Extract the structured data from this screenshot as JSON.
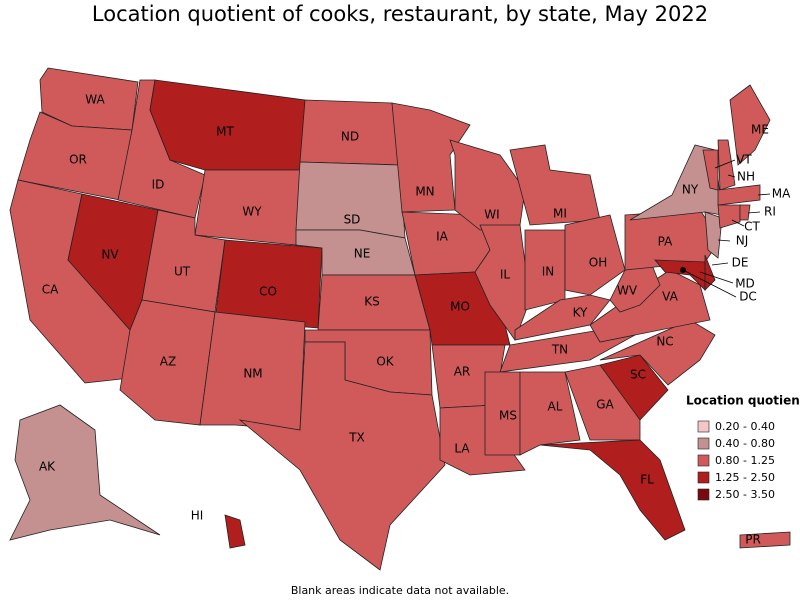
{
  "title": "Location quotient of cooks, restaurant, by state, May 2022",
  "legend": {
    "title": "Location quotient",
    "items": [
      {
        "label": "0.20 - 0.40",
        "color": "#f5c6c6"
      },
      {
        "label": "0.40 - 0.80",
        "color": "#c49090"
      },
      {
        "label": "0.80 - 1.25",
        "color": "#d05a5a"
      },
      {
        "label": "1.25 - 2.50",
        "color": "#b01e1e"
      },
      {
        "label": "2.50 - 3.50",
        "color": "#7a0a0e"
      }
    ]
  },
  "states": [
    {
      "label": "WA",
      "class": 2
    },
    {
      "label": "OR",
      "class": 2
    },
    {
      "label": "CA",
      "class": 2
    },
    {
      "label": "NV",
      "class": 3
    },
    {
      "label": "ID",
      "class": 2
    },
    {
      "label": "MT",
      "class": 3
    },
    {
      "label": "WY",
      "class": 2
    },
    {
      "label": "UT",
      "class": 2
    },
    {
      "label": "CO",
      "class": 3
    },
    {
      "label": "AZ",
      "class": 2
    },
    {
      "label": "NM",
      "class": 2
    },
    {
      "label": "ND",
      "class": 2
    },
    {
      "label": "SD",
      "class": 1
    },
    {
      "label": "NE",
      "class": 1
    },
    {
      "label": "KS",
      "class": 2
    },
    {
      "label": "OK",
      "class": 2
    },
    {
      "label": "TX",
      "class": 2
    },
    {
      "label": "MN",
      "class": 2
    },
    {
      "label": "IA",
      "class": 2
    },
    {
      "label": "MO",
      "class": 3
    },
    {
      "label": "AR",
      "class": 2
    },
    {
      "label": "LA",
      "class": 2
    },
    {
      "label": "WI",
      "class": 2
    },
    {
      "label": "IL",
      "class": 2
    },
    {
      "label": "MI",
      "class": 2
    },
    {
      "label": "IN",
      "class": 2
    },
    {
      "label": "OH",
      "class": 2
    },
    {
      "label": "KY",
      "class": 2
    },
    {
      "label": "TN",
      "class": 2
    },
    {
      "label": "MS",
      "class": 2
    },
    {
      "label": "AL",
      "class": 2
    },
    {
      "label": "GA",
      "class": 2
    },
    {
      "label": "FL",
      "class": 3
    },
    {
      "label": "SC",
      "class": 3
    },
    {
      "label": "NC",
      "class": 2
    },
    {
      "label": "VA",
      "class": 2
    },
    {
      "label": "WV",
      "class": 2
    },
    {
      "label": "PA",
      "class": 2
    },
    {
      "label": "NY",
      "class": 1
    },
    {
      "label": "MD",
      "class": 3
    },
    {
      "label": "DE",
      "class": 3
    },
    {
      "label": "NJ",
      "class": 1
    },
    {
      "label": "VT",
      "class": 2
    },
    {
      "label": "NH",
      "class": 2
    },
    {
      "label": "ME",
      "class": 2
    },
    {
      "label": "MA",
      "class": 2
    },
    {
      "label": "CT",
      "class": 2
    },
    {
      "label": "RI",
      "class": 2
    },
    {
      "label": "AK",
      "class": 1
    },
    {
      "label": "HI",
      "class": 3
    },
    {
      "label": "PR",
      "class": 2
    }
  ],
  "dc_label": "DC",
  "note": "Blank areas indicate data not available."
}
